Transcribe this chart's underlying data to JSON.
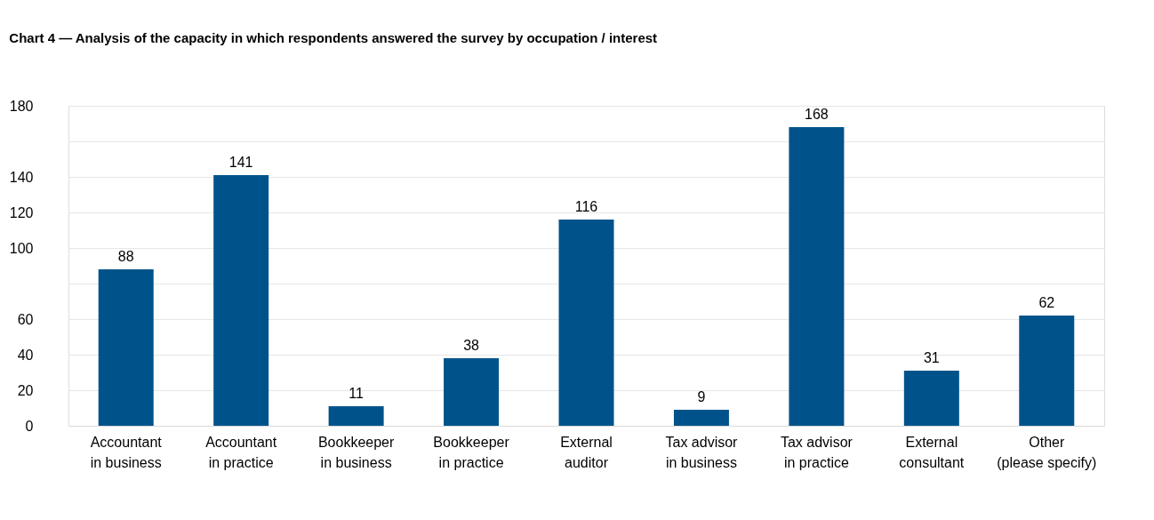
{
  "chart_data": {
    "type": "bar",
    "title": "Chart 4 — Analysis of the capacity in which respondents answered the survey by occupation / interest",
    "categories": [
      "Accountant\nin business",
      "Accountant\nin practice",
      "Bookkeeper\nin business",
      "Bookkeeper\nin practice",
      "External\nauditor",
      "Tax advisor\nin business",
      "Tax advisor\nin practice",
      "External\nconsultant",
      "Other\n(please  specify)"
    ],
    "values": [
      88,
      141,
      11,
      38,
      116,
      9,
      168,
      31,
      62
    ],
    "color": "#00538a",
    "ylim": [
      0,
      180
    ],
    "yticks": [
      0,
      20,
      40,
      60,
      {
        "value": 80,
        "label": null
      },
      100,
      120,
      140,
      {
        "value": 160,
        "label": null
      },
      180
    ],
    "grid": "y",
    "data_labels": true
  }
}
